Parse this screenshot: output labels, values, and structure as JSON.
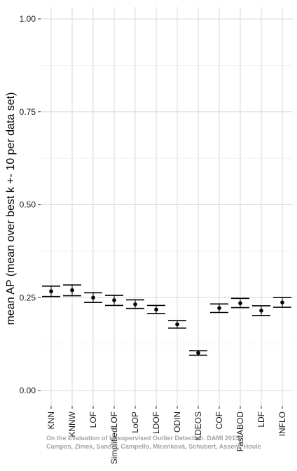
{
  "chart_data": {
    "type": "errorbar",
    "title": "",
    "xlabel": "",
    "ylabel": "mean AP (mean over best k +- 10 per data set)",
    "ylim": [
      -0.02,
      1.05
    ],
    "yticks": [
      "0.00",
      "0.25",
      "0.50",
      "0.75",
      "1.00"
    ],
    "grid": true,
    "categories": [
      "KNN",
      "KNNW",
      "LOF",
      "SimplifiedLOF",
      "LoOP",
      "LDOF",
      "ODIN",
      "KDEOS",
      "COF",
      "FastABOD",
      "LDF",
      "INFLO"
    ],
    "series": [
      {
        "mean": [
          0.267,
          0.27,
          0.25,
          0.243,
          0.232,
          0.218,
          0.178,
          0.101,
          0.222,
          0.235,
          0.215,
          0.237
        ],
        "lower": [
          0.253,
          0.255,
          0.237,
          0.229,
          0.221,
          0.207,
          0.168,
          0.095,
          0.21,
          0.223,
          0.202,
          0.224
        ],
        "upper": [
          0.281,
          0.284,
          0.263,
          0.256,
          0.244,
          0.229,
          0.188,
          0.107,
          0.233,
          0.248,
          0.228,
          0.25
        ]
      }
    ]
  },
  "watermark": {
    "line1": "On the Evaluation of Unsupervised Outlier Detection. DAMI 2015.",
    "line2": "Campos, Zimek, Sander, Campello, Micenková, Schubert, Assent, Houle"
  }
}
